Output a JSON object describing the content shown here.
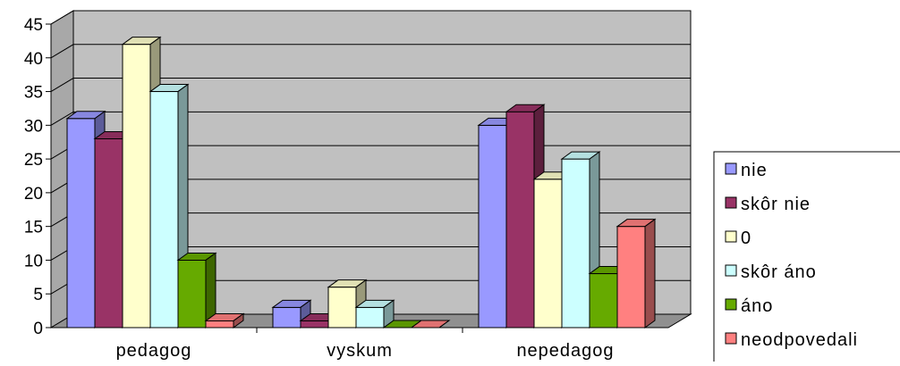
{
  "chart_data": {
    "type": "bar",
    "categories": [
      "pedagog",
      "vyskum",
      "nepedagog"
    ],
    "series": [
      {
        "name": "nie",
        "values": [
          31,
          3,
          30
        ],
        "color": "#9999FF"
      },
      {
        "name": "skôr nie",
        "values": [
          28,
          1,
          32
        ],
        "color": "#993366"
      },
      {
        "name": "0",
        "values": [
          42,
          6,
          22
        ],
        "color": "#FFFFCC"
      },
      {
        "name": "skôr áno",
        "values": [
          35,
          3,
          25
        ],
        "color": "#CCFFFF"
      },
      {
        "name": "áno",
        "values": [
          10,
          0,
          8
        ],
        "color": "#66AA00"
      },
      {
        "name": "neodpovedali",
        "values": [
          1,
          0,
          15
        ],
        "color": "#FF8080"
      }
    ],
    "yticks": [
      0,
      5,
      10,
      15,
      20,
      25,
      30,
      35,
      40,
      45
    ],
    "ylim": [
      0,
      45
    ],
    "grid": true,
    "three_d": true,
    "wall_color": "#C0C0C0",
    "legend_position": "right"
  }
}
